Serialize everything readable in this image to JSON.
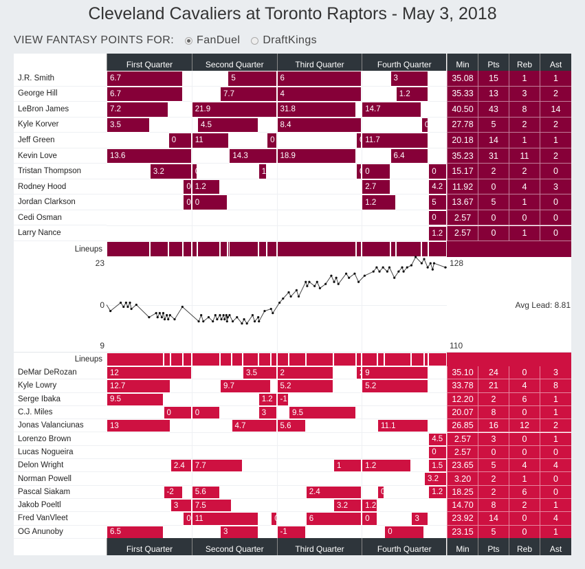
{
  "title": "Cleveland Cavaliers at Toronto Raptors - May 3, 2018",
  "view_for": {
    "label": "VIEW FANTASY POINTS FOR:",
    "options": [
      {
        "label": "FanDuel",
        "selected": true
      },
      {
        "label": "DraftKings",
        "selected": false
      }
    ]
  },
  "columns": {
    "quarters": [
      "First Quarter",
      "Second Quarter",
      "Third Quarter",
      "Fourth Quarter"
    ],
    "stats": [
      "Min",
      "Pts",
      "Reb",
      "Ast"
    ]
  },
  "lineups_label": "Lineups",
  "colors": {
    "cavs": "#860038",
    "raptors": "#ce1141",
    "header": "#2e353b"
  },
  "chart_data": {
    "type": "line",
    "x_unit": "game minute",
    "xlim": [
      0,
      48
    ],
    "ylim": [
      -23,
      23
    ],
    "top_label": "23",
    "zero_label": "0",
    "bottom_label": "9",
    "final_scores": {
      "top": "128",
      "bottom": "110"
    },
    "avg_lead": "Avg Lead: 8.81",
    "points": [
      [
        0,
        0
      ],
      [
        0.55,
        -3
      ],
      [
        2.0,
        1
      ],
      [
        2.4,
        -1
      ],
      [
        2.75,
        1
      ],
      [
        3.0,
        -1
      ],
      [
        3.3,
        1
      ],
      [
        3.5,
        -2
      ],
      [
        4.2,
        0
      ],
      [
        6.0,
        -6
      ],
      [
        7.0,
        -4
      ],
      [
        7.2,
        -6
      ],
      [
        7.5,
        -4
      ],
      [
        7.8,
        -6
      ],
      [
        8.0,
        -4
      ],
      [
        8.2,
        -7
      ],
      [
        8.5,
        -5
      ],
      [
        8.7,
        -7
      ],
      [
        8.95,
        -5
      ],
      [
        9.6,
        -7
      ],
      [
        10.7,
        -1
      ],
      [
        13.0,
        -8
      ],
      [
        13.35,
        -5
      ],
      [
        13.65,
        -8
      ],
      [
        14.4,
        -6
      ],
      [
        15.0,
        -8
      ],
      [
        15.35,
        -5
      ],
      [
        15.6,
        -7
      ],
      [
        16.0,
        -5
      ],
      [
        16.2,
        -7
      ],
      [
        16.5,
        -5
      ],
      [
        16.65,
        -7
      ],
      [
        16.9,
        -5
      ],
      [
        17.0,
        -8
      ],
      [
        17.1,
        -6
      ],
      [
        17.35,
        -5
      ],
      [
        17.8,
        -8
      ],
      [
        18.4,
        -6
      ],
      [
        19.1,
        -9
      ],
      [
        19.4,
        -7
      ],
      [
        19.8,
        -9
      ],
      [
        20.6,
        -5
      ],
      [
        20.9,
        -8
      ],
      [
        21.4,
        -6
      ],
      [
        21.5,
        -8
      ],
      [
        22.3,
        -3
      ],
      [
        23.2,
        -2
      ],
      [
        23.45,
        -4
      ],
      [
        24.4,
        1
      ],
      [
        24.9,
        3
      ],
      [
        25.7,
        6
      ],
      [
        26.0,
        4
      ],
      [
        26.8,
        7
      ],
      [
        27.1,
        4
      ],
      [
        28.1,
        11
      ],
      [
        28.3,
        9
      ],
      [
        28.6,
        11
      ],
      [
        29.35,
        9
      ],
      [
        29.7,
        11
      ],
      [
        30.1,
        8
      ],
      [
        30.9,
        10
      ],
      [
        31.7,
        14
      ],
      [
        32.1,
        11
      ],
      [
        32.4,
        13
      ],
      [
        32.7,
        10
      ],
      [
        33.8,
        15
      ],
      [
        34.2,
        13
      ],
      [
        35.0,
        15
      ],
      [
        35.55,
        11
      ],
      [
        36.4,
        14
      ],
      [
        37.65,
        16
      ],
      [
        38.1,
        18
      ],
      [
        38.5,
        16
      ],
      [
        39.0,
        18
      ],
      [
        39.6,
        16
      ],
      [
        39.9,
        18
      ],
      [
        40.6,
        13
      ],
      [
        41.2,
        16
      ],
      [
        41.7,
        18
      ],
      [
        41.9,
        16
      ],
      [
        42.4,
        18
      ],
      [
        43.0,
        19
      ],
      [
        43.6,
        23
      ],
      [
        44.45,
        20
      ],
      [
        44.8,
        22
      ],
      [
        45.3,
        18
      ],
      [
        45.7,
        20
      ],
      [
        46.0,
        17
      ],
      [
        46.2,
        20
      ],
      [
        47.8,
        18
      ],
      [
        48,
        18
      ]
    ]
  },
  "teams": [
    {
      "key": "cavs",
      "players": [
        {
          "name": "J.R. Smith",
          "min": "35.08",
          "pts": "15",
          "reb": "1",
          "ast": "1",
          "stints": [
            [
              0,
              10.8,
              "6.7"
            ],
            [
              17.1,
              24,
              "5"
            ],
            [
              24,
              36,
              "6"
            ],
            [
              40,
              45.4,
              "3"
            ]
          ]
        },
        {
          "name": "George Hill",
          "min": "35.33",
          "pts": "13",
          "reb": "3",
          "ast": "2",
          "stints": [
            [
              0,
              10.8,
              "6.7"
            ],
            [
              16,
              24,
              "7.7"
            ],
            [
              24,
              36,
              "4"
            ],
            [
              40.8,
              45.4,
              "1.2"
            ]
          ]
        },
        {
          "name": "LeBron James",
          "min": "40.50",
          "pts": "43",
          "reb": "8",
          "ast": "14",
          "stints": [
            [
              0,
              8.7,
              "7.2"
            ],
            [
              12,
              24,
              "21.9"
            ],
            [
              24,
              35.2,
              "31.8"
            ],
            [
              36,
              44.4,
              "14.7"
            ]
          ]
        },
        {
          "name": "Kyle Korver",
          "min": "27.78",
          "pts": "5",
          "reb": "2",
          "ast": "2",
          "stints": [
            [
              0,
              6.1,
              "3.5"
            ],
            [
              12.8,
              21.4,
              "4.5"
            ],
            [
              24,
              36,
              "8.4"
            ],
            [
              44.4,
              45.4,
              "0"
            ]
          ]
        },
        {
          "name": "Jeff Green",
          "min": "20.18",
          "pts": "14",
          "reb": "1",
          "ast": "1",
          "stints": [
            [
              8.7,
              12,
              "0"
            ],
            [
              12,
              17.3,
              "11"
            ],
            [
              22.6,
              24,
              "0"
            ],
            [
              35.2,
              36,
              "0"
            ],
            [
              36,
              45.4,
              "11.7"
            ]
          ]
        },
        {
          "name": "Kevin Love",
          "min": "35.23",
          "pts": "31",
          "reb": "11",
          "ast": "2",
          "stints": [
            [
              0,
              12,
              "13.6"
            ],
            [
              17.3,
              24,
              "14.3"
            ],
            [
              24,
              35.2,
              "18.9"
            ],
            [
              40,
              45.4,
              "6.4"
            ]
          ]
        },
        {
          "name": "Tristan Thompson",
          "min": "15.17",
          "pts": "2",
          "reb": "2",
          "ast": "0",
          "stints": [
            [
              6.1,
              12,
              "3.2"
            ],
            [
              12,
              12.8,
              "0"
            ],
            [
              21.4,
              22.6,
              "1.2"
            ],
            [
              35.2,
              36,
              "0"
            ],
            [
              36,
              40,
              "0"
            ],
            [
              45.4,
              48,
              "0"
            ]
          ]
        },
        {
          "name": "Rodney Hood",
          "min": "11.92",
          "pts": "0",
          "reb": "4",
          "ast": "3",
          "stints": [
            [
              10.8,
              12,
              "0."
            ],
            [
              12,
              16,
              "1.2"
            ],
            [
              36,
              40,
              "2.7"
            ],
            [
              45.4,
              48,
              "4.2"
            ]
          ]
        },
        {
          "name": "Jordan Clarkson",
          "min": "13.67",
          "pts": "5",
          "reb": "1",
          "ast": "0",
          "stints": [
            [
              10.8,
              12,
              "0"
            ],
            [
              12,
              17.1,
              "0"
            ],
            [
              36,
              40.8,
              "1.2"
            ],
            [
              45.4,
              48,
              "5"
            ]
          ]
        },
        {
          "name": "Cedi Osman",
          "min": "2.57",
          "pts": "0",
          "reb": "0",
          "ast": "0",
          "stints": [
            [
              45.4,
              48,
              "0"
            ]
          ]
        },
        {
          "name": "Larry Nance",
          "min": "2.57",
          "pts": "0",
          "reb": "1",
          "ast": "0",
          "stints": [
            [
              45.4,
              48,
              "1.2"
            ]
          ]
        }
      ]
    },
    {
      "key": "raptors",
      "players": [
        {
          "name": "DeMar DeRozan",
          "min": "35.10",
          "pts": "24",
          "reb": "0",
          "ast": "3",
          "stints": [
            [
              0,
              12,
              "12"
            ],
            [
              19.2,
              24,
              "3.5"
            ],
            [
              24,
              32,
              "2"
            ],
            [
              35.2,
              36,
              "2"
            ],
            [
              36,
              45.4,
              "9"
            ]
          ]
        },
        {
          "name": "Kyle Lowry",
          "min": "33.78",
          "pts": "21",
          "reb": "4",
          "ast": "8",
          "stints": [
            [
              0,
              9,
              "12.7"
            ],
            [
              16,
              23.2,
              "9.7"
            ],
            [
              24,
              32,
              "5.2"
            ],
            [
              36,
              45.4,
              "5.2"
            ]
          ]
        },
        {
          "name": "Serge Ibaka",
          "min": "12.20",
          "pts": "2",
          "reb": "6",
          "ast": "1",
          "stints": [
            [
              0,
              8,
              "9.5"
            ],
            [
              21.4,
              24,
              "1.2"
            ],
            [
              24,
              25.7,
              "-1"
            ]
          ]
        },
        {
          "name": "C.J. Miles",
          "min": "20.07",
          "pts": "8",
          "reb": "0",
          "ast": "1",
          "stints": [
            [
              8,
              12,
              "0"
            ],
            [
              12,
              16,
              "0"
            ],
            [
              21.4,
              24,
              "3"
            ],
            [
              25.7,
              35.2,
              "9.5"
            ]
          ]
        },
        {
          "name": "Jonas Valanciunas",
          "min": "26.85",
          "pts": "16",
          "reb": "12",
          "ast": "2",
          "stints": [
            [
              0,
              9,
              "13"
            ],
            [
              17.6,
              24,
              "4.7"
            ],
            [
              24,
              28.1,
              "5.6"
            ],
            [
              38.2,
              45.4,
              "11.1"
            ]
          ]
        },
        {
          "name": "Lorenzo Brown",
          "min": "2.57",
          "pts": "3",
          "reb": "0",
          "ast": "1",
          "stints": [
            [
              45.4,
              48,
              "4.5"
            ]
          ]
        },
        {
          "name": "Lucas Nogueira",
          "min": "2.57",
          "pts": "0",
          "reb": "0",
          "ast": "0",
          "stints": [
            [
              45.4,
              48,
              "0"
            ]
          ]
        },
        {
          "name": "Delon Wright",
          "min": "23.65",
          "pts": "5",
          "reb": "4",
          "ast": "4",
          "stints": [
            [
              9,
              12,
              "2.4"
            ],
            [
              12,
              19.2,
              "7.7"
            ],
            [
              32,
              36,
              "1"
            ],
            [
              36,
              43,
              "1.2"
            ],
            [
              45.4,
              48,
              "1.5"
            ]
          ]
        },
        {
          "name": "Norman Powell",
          "min": "3.20",
          "pts": "2",
          "reb": "1",
          "ast": "0",
          "stints": [
            [
              44.8,
              48,
              "3.2"
            ]
          ]
        },
        {
          "name": "Pascal Siakam",
          "min": "18.25",
          "pts": "2",
          "reb": "6",
          "ast": "0",
          "stints": [
            [
              8,
              10.8,
              "-2"
            ],
            [
              12,
              16,
              "5.6"
            ],
            [
              28.1,
              36,
              "2.4"
            ],
            [
              38.2,
              39.2,
              "0"
            ],
            [
              45.4,
              48,
              "1.2"
            ]
          ]
        },
        {
          "name": "Jakob Poeltl",
          "min": "14.70",
          "pts": "8",
          "reb": "2",
          "ast": "1",
          "stints": [
            [
              9,
              12,
              "3"
            ],
            [
              12,
              17.6,
              "7.5"
            ],
            [
              32,
              36,
              "3.2"
            ],
            [
              36,
              38.2,
              "1.2"
            ]
          ]
        },
        {
          "name": "Fred VanVleet",
          "min": "23.92",
          "pts": "14",
          "reb": "0",
          "ast": "4",
          "stints": [
            [
              10.8,
              12,
              "0"
            ],
            [
              12,
              21.4,
              "11"
            ],
            [
              23.2,
              24,
              "0"
            ],
            [
              28.1,
              36,
              "6"
            ],
            [
              36,
              38.2,
              "0"
            ],
            [
              43,
              45.4,
              "3"
            ]
          ]
        },
        {
          "name": "OG Anunoby",
          "min": "23.15",
          "pts": "5",
          "reb": "0",
          "ast": "1",
          "stints": [
            [
              0,
              8,
              "6.5"
            ],
            [
              16,
              21.4,
              "3"
            ],
            [
              24,
              28.1,
              "-1"
            ],
            [
              39.2,
              44.8,
              "0"
            ]
          ]
        }
      ]
    }
  ]
}
